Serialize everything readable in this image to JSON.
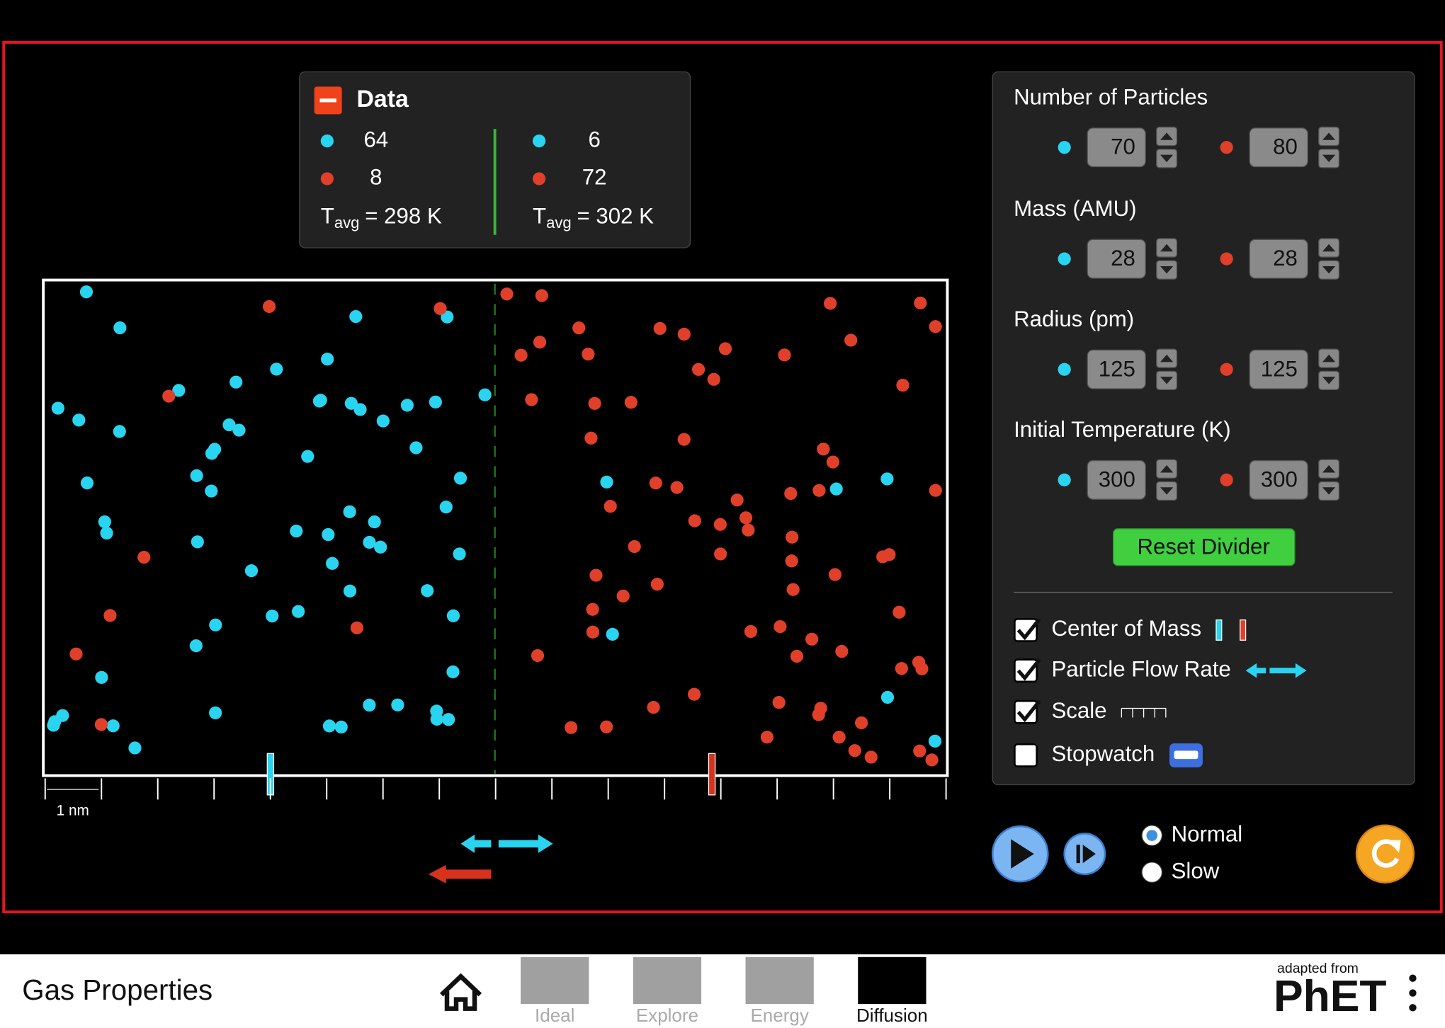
{
  "data_panel": {
    "title": "Data",
    "left": {
      "blue_count": 64,
      "red_count": 8,
      "t": "T",
      "sub": "avg",
      "temp": "= 298 K"
    },
    "right": {
      "blue_count": 6,
      "red_count": 72,
      "t": "T",
      "sub": "avg",
      "temp": "= 302 K"
    }
  },
  "scale_label": "1 nm",
  "controls": {
    "rows": [
      {
        "label": "Number of Particles",
        "blue": 70,
        "red": 80
      },
      {
        "label": "Mass (AMU)",
        "blue": 28,
        "red": 28
      },
      {
        "label": "Radius (pm)",
        "blue": 125,
        "red": 125
      },
      {
        "label": "Initial Temperature (K)",
        "blue": 300,
        "red": 300
      }
    ],
    "reset_button": "Reset Divider",
    "checkboxes": [
      {
        "label": "Center of Mass",
        "checked": true
      },
      {
        "label": "Particle Flow Rate",
        "checked": true
      },
      {
        "label": "Scale",
        "checked": true
      },
      {
        "label": "Stopwatch",
        "checked": false
      }
    ],
    "speeds": [
      {
        "label": "Normal",
        "selected": true
      },
      {
        "label": "Slow",
        "selected": false
      }
    ]
  },
  "footer": {
    "title": "Gas Properties",
    "tabs": [
      "Ideal",
      "Explore",
      "Energy",
      "Diffusion"
    ],
    "active_tab": 3,
    "adapted": "adapted from",
    "brand": "PhET"
  }
}
